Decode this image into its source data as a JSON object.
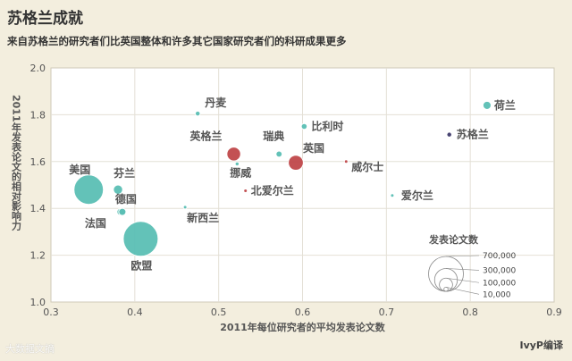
{
  "chart_data": {
    "type": "scatter",
    "title": "苏格兰成就",
    "subtitle": "来自苏格兰的研究者们比英国整体和许多其它国家研究者们的科研成果更多",
    "xlabel": "2011年每位研究者的平均发表论文数",
    "ylabel": "2011年发表论文的相对影响力",
    "xlim": [
      0.3,
      0.9
    ],
    "ylim": [
      1.0,
      2.0
    ],
    "xticks": [
      "0.3",
      "0.4",
      "0.5",
      "0.6",
      "0.7",
      "0.8",
      "0.9"
    ],
    "yticks": [
      "1.0",
      "1.2",
      "1.4",
      "1.6",
      "1.8",
      "2.0"
    ],
    "grid": true,
    "points": [
      {
        "label": "丹麦",
        "x": 0.475,
        "y": 1.805,
        "papers": 14000,
        "color": "#5bbfb5"
      },
      {
        "label": "荷兰",
        "x": 0.82,
        "y": 1.84,
        "papers": 38000,
        "color": "#5bbfb5"
      },
      {
        "label": "比利时",
        "x": 0.602,
        "y": 1.75,
        "papers": 20000,
        "color": "#5bbfb5"
      },
      {
        "label": "苏格兰",
        "x": 0.775,
        "y": 1.715,
        "papers": 14000,
        "color": "#3f3a6b"
      },
      {
        "label": "英格兰",
        "x": 0.518,
        "y": 1.632,
        "papers": 110000,
        "color": "#c0484a"
      },
      {
        "label": "瑞典",
        "x": 0.572,
        "y": 1.632,
        "papers": 22000,
        "color": "#5bbfb5"
      },
      {
        "label": "英国",
        "x": 0.592,
        "y": 1.595,
        "papers": 130000,
        "color": "#c0484a"
      },
      {
        "label": "挪威",
        "x": 0.522,
        "y": 1.59,
        "papers": 9000,
        "color": "#5bbfb5"
      },
      {
        "label": "威尔士",
        "x": 0.652,
        "y": 1.6,
        "papers": 4000,
        "color": "#c0484a"
      },
      {
        "label": "北爱尔兰",
        "x": 0.532,
        "y": 1.475,
        "papers": 3000,
        "color": "#c0484a"
      },
      {
        "label": "爱尔兰",
        "x": 0.707,
        "y": 1.455,
        "papers": 7000,
        "color": "#5bbfb5"
      },
      {
        "label": "美国",
        "x": 0.345,
        "y": 1.48,
        "papers": 500000,
        "color": "#5bbfb5"
      },
      {
        "label": "芬兰",
        "x": 0.38,
        "y": 1.48,
        "papers": 50000,
        "color": "#5bbfb5"
      },
      {
        "label": "德国",
        "x": 0.383,
        "y": 1.385,
        "papers": 30000,
        "color": "#5bbfb5"
      },
      {
        "label": "新西兰",
        "x": 0.46,
        "y": 1.405,
        "papers": 6000,
        "color": "#5bbfb5"
      },
      {
        "label": "法国",
        "x": 0.383,
        "y": 1.385,
        "papers": 40000,
        "color": "#5bbfb5"
      },
      {
        "label": "欧盟",
        "x": 0.407,
        "y": 1.27,
        "papers": 700000,
        "color": "#5bbfb5"
      }
    ],
    "legend": {
      "title": "发表论文数",
      "values": [
        "700,000",
        "300,000",
        "100,000",
        "10,000"
      ],
      "sizes": [
        700000,
        300000,
        100000,
        10000
      ]
    }
  },
  "credit": "IvyP编译",
  "watermark": "大数据文摘"
}
